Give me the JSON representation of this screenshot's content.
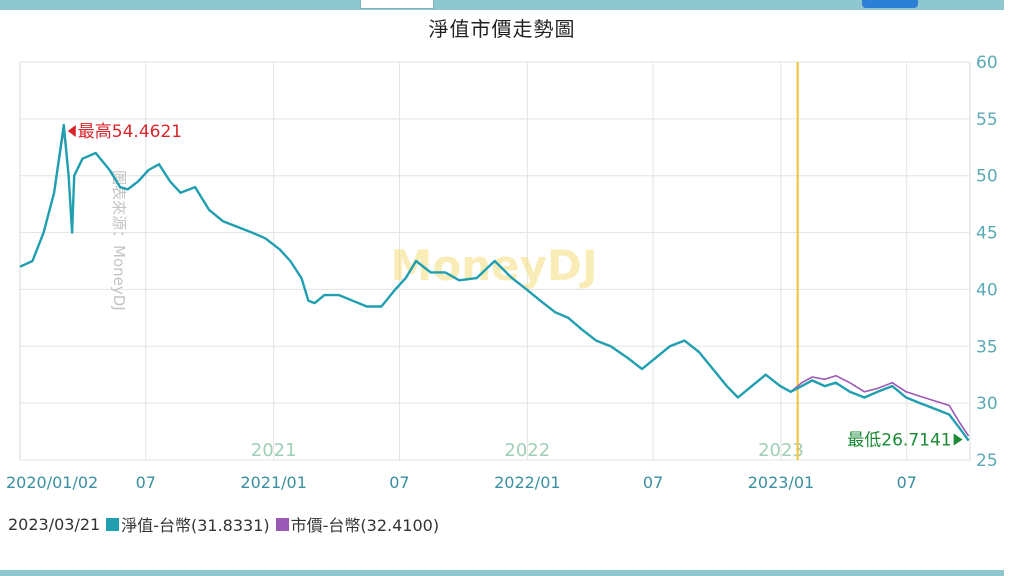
{
  "header": {
    "title": "淨值市價走勢圖"
  },
  "legend": {
    "date": "2023/03/21",
    "items": [
      {
        "label": "淨值-台幣(31.8331)",
        "color": "#1f9fb0"
      },
      {
        "label": "市價-台幣(32.4100)",
        "color": "#9b59b6"
      }
    ]
  },
  "watermark": {
    "center": "MoneyDJ",
    "vertical": "圖表來源：MoneyDJ"
  },
  "chart_data": {
    "type": "line",
    "title": "淨值市價走勢圖",
    "x_range": [
      "2020/01/02",
      "2023/09/30"
    ],
    "ylim": [
      25,
      60
    ],
    "y_ticks": [
      60,
      55,
      50,
      45,
      40,
      35,
      30,
      25
    ],
    "y_axis_position": "right",
    "x_tick_labels": [
      "2020/01/02",
      "07",
      "2021/01",
      "07",
      "2022/01",
      "07",
      "2023/01",
      "07"
    ],
    "year_labels": [
      "2021",
      "2022",
      "2023"
    ],
    "grid": true,
    "marker_line": {
      "date": "2023/01/25",
      "color": "#f2c230"
    },
    "annotations": {
      "max": {
        "text": "最高54.4621",
        "value": 54.4621,
        "date": "2020/03/05",
        "color": "#d9262c"
      },
      "min": {
        "text": "最低26.7141",
        "value": 26.7141,
        "date": "2023/09/28",
        "color": "#1a8a34"
      }
    },
    "series": [
      {
        "name": "淨值-台幣",
        "color": "#1f9fb0",
        "points": [
          [
            "2020/01/02",
            42.0
          ],
          [
            "2020/01/20",
            42.5
          ],
          [
            "2020/02/05",
            45.0
          ],
          [
            "2020/02/20",
            48.5
          ],
          [
            "2020/03/05",
            54.46
          ],
          [
            "2020/03/12",
            50.0
          ],
          [
            "2020/03/17",
            45.0
          ],
          [
            "2020/03/20",
            50.0
          ],
          [
            "2020/04/01",
            51.5
          ],
          [
            "2020/04/20",
            52.0
          ],
          [
            "2020/05/10",
            50.5
          ],
          [
            "2020/05/25",
            49.0
          ],
          [
            "2020/06/05",
            48.8
          ],
          [
            "2020/06/20",
            49.5
          ],
          [
            "2020/07/05",
            50.5
          ],
          [
            "2020/07/20",
            51.0
          ],
          [
            "2020/08/05",
            49.5
          ],
          [
            "2020/08/20",
            48.5
          ],
          [
            "2020/09/10",
            49.0
          ],
          [
            "2020/09/30",
            47.0
          ],
          [
            "2020/10/20",
            46.0
          ],
          [
            "2020/11/10",
            45.5
          ],
          [
            "2020/12/01",
            45.0
          ],
          [
            "2020/12/20",
            44.5
          ],
          [
            "2021/01/10",
            43.5
          ],
          [
            "2021/01/25",
            42.5
          ],
          [
            "2021/02/10",
            41.0
          ],
          [
            "2021/02/20",
            39.0
          ],
          [
            "2021/03/01",
            38.8
          ],
          [
            "2021/03/15",
            39.5
          ],
          [
            "2021/04/05",
            39.5
          ],
          [
            "2021/04/25",
            39.0
          ],
          [
            "2021/05/15",
            38.5
          ],
          [
            "2021/06/05",
            38.5
          ],
          [
            "2021/06/25",
            40.0
          ],
          [
            "2021/07/10",
            41.0
          ],
          [
            "2021/07/25",
            42.5
          ],
          [
            "2021/08/15",
            41.5
          ],
          [
            "2021/09/05",
            41.5
          ],
          [
            "2021/09/25",
            40.8
          ],
          [
            "2021/10/20",
            41.0
          ],
          [
            "2021/11/15",
            42.5
          ],
          [
            "2021/12/10",
            41.0
          ],
          [
            "2021/12/31",
            40.0
          ],
          [
            "2022/01/20",
            39.0
          ],
          [
            "2022/02/10",
            38.0
          ],
          [
            "2022/03/01",
            37.5
          ],
          [
            "2022/03/20",
            36.5
          ],
          [
            "2022/04/10",
            35.5
          ],
          [
            "2022/05/01",
            35.0
          ],
          [
            "2022/05/25",
            34.0
          ],
          [
            "2022/06/15",
            33.0
          ],
          [
            "2022/07/05",
            34.0
          ],
          [
            "2022/07/25",
            35.0
          ],
          [
            "2022/08/15",
            35.5
          ],
          [
            "2022/09/05",
            34.5
          ],
          [
            "2022/09/25",
            33.0
          ],
          [
            "2022/10/15",
            31.5
          ],
          [
            "2022/10/31",
            30.5
          ],
          [
            "2022/11/20",
            31.5
          ],
          [
            "2022/12/10",
            32.5
          ],
          [
            "2022/12/31",
            31.5
          ],
          [
            "2023/01/15",
            31.0
          ],
          [
            "2023/01/31",
            31.5
          ],
          [
            "2023/02/15",
            32.0
          ],
          [
            "2023/03/05",
            31.5
          ],
          [
            "2023/03/21",
            31.8
          ],
          [
            "2023/04/10",
            31.0
          ],
          [
            "2023/05/01",
            30.5
          ],
          [
            "2023/05/20",
            31.0
          ],
          [
            "2023/06/10",
            31.5
          ],
          [
            "2023/06/30",
            30.5
          ],
          [
            "2023/07/20",
            30.0
          ],
          [
            "2023/08/10",
            29.5
          ],
          [
            "2023/08/31",
            29.0
          ],
          [
            "2023/09/15",
            27.8
          ],
          [
            "2023/09/28",
            26.71
          ]
        ]
      },
      {
        "name": "市價-台幣",
        "color": "#9b59b6",
        "points": [
          [
            "2020/01/02",
            42.0
          ],
          [
            "2020/01/20",
            42.5
          ],
          [
            "2020/02/05",
            45.0
          ],
          [
            "2020/02/20",
            48.5
          ],
          [
            "2020/03/05",
            54.0
          ],
          [
            "2020/03/12",
            50.0
          ],
          [
            "2020/03/17",
            45.5
          ],
          [
            "2020/03/20",
            50.0
          ],
          [
            "2020/04/01",
            51.5
          ],
          [
            "2020/04/20",
            52.0
          ],
          [
            "2020/05/10",
            50.5
          ],
          [
            "2020/05/25",
            49.0
          ],
          [
            "2020/06/05",
            48.8
          ],
          [
            "2020/06/20",
            49.5
          ],
          [
            "2020/07/05",
            50.5
          ],
          [
            "2020/07/20",
            51.0
          ],
          [
            "2020/08/05",
            49.5
          ],
          [
            "2020/08/20",
            48.5
          ],
          [
            "2020/09/10",
            49.0
          ],
          [
            "2020/09/30",
            47.0
          ],
          [
            "2020/10/20",
            46.0
          ],
          [
            "2020/11/10",
            45.5
          ],
          [
            "2020/12/01",
            45.0
          ],
          [
            "2020/12/20",
            44.5
          ],
          [
            "2021/01/10",
            43.5
          ],
          [
            "2021/01/25",
            42.5
          ],
          [
            "2021/02/10",
            41.0
          ],
          [
            "2021/02/20",
            39.0
          ],
          [
            "2021/03/01",
            38.8
          ],
          [
            "2021/03/15",
            39.5
          ],
          [
            "2021/04/05",
            39.5
          ],
          [
            "2021/04/25",
            39.0
          ],
          [
            "2021/05/15",
            38.5
          ],
          [
            "2021/06/05",
            38.5
          ],
          [
            "2021/06/25",
            40.0
          ],
          [
            "2021/07/10",
            41.0
          ],
          [
            "2021/07/25",
            42.5
          ],
          [
            "2021/08/15",
            41.5
          ],
          [
            "2021/09/05",
            41.5
          ],
          [
            "2021/09/25",
            40.8
          ],
          [
            "2021/10/20",
            41.0
          ],
          [
            "2021/11/15",
            42.5
          ],
          [
            "2021/12/10",
            41.0
          ],
          [
            "2021/12/31",
            40.0
          ],
          [
            "2022/01/20",
            39.0
          ],
          [
            "2022/02/10",
            38.0
          ],
          [
            "2022/03/01",
            37.5
          ],
          [
            "2022/03/20",
            36.5
          ],
          [
            "2022/04/10",
            35.5
          ],
          [
            "2022/05/01",
            35.0
          ],
          [
            "2022/05/25",
            34.0
          ],
          [
            "2022/06/15",
            33.0
          ],
          [
            "2022/07/05",
            34.0
          ],
          [
            "2022/07/25",
            35.0
          ],
          [
            "2022/08/15",
            35.5
          ],
          [
            "2022/09/05",
            34.5
          ],
          [
            "2022/09/25",
            33.0
          ],
          [
            "2022/10/15",
            31.5
          ],
          [
            "2022/10/31",
            30.5
          ],
          [
            "2022/11/20",
            31.5
          ],
          [
            "2022/12/10",
            32.5
          ],
          [
            "2022/12/31",
            31.5
          ],
          [
            "2023/01/15",
            31.0
          ],
          [
            "2023/01/31",
            31.8
          ],
          [
            "2023/02/15",
            32.3
          ],
          [
            "2023/03/05",
            32.1
          ],
          [
            "2023/03/21",
            32.41
          ],
          [
            "2023/04/10",
            31.8
          ],
          [
            "2023/05/01",
            31.0
          ],
          [
            "2023/05/20",
            31.3
          ],
          [
            "2023/06/10",
            31.8
          ],
          [
            "2023/06/30",
            31.0
          ],
          [
            "2023/07/20",
            30.6
          ],
          [
            "2023/08/10",
            30.2
          ],
          [
            "2023/08/31",
            29.8
          ],
          [
            "2023/09/15",
            28.3
          ],
          [
            "2023/09/28",
            27.1
          ]
        ]
      }
    ]
  }
}
